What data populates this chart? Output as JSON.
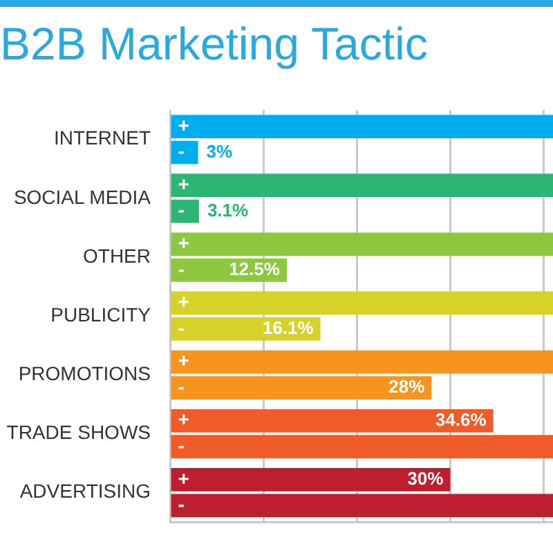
{
  "chart_data": {
    "type": "bar",
    "orientation": "horizontal",
    "title": "B2B Marketing Tactic",
    "categories": [
      "INTERNET",
      "SOCIAL MEDIA",
      "OTHER",
      "PUBLICITY",
      "PROMOTIONS",
      "TRADE SHOWS",
      "ADVERTISING"
    ],
    "series": [
      {
        "name": "+",
        "colors": [
          "#00aeef",
          "#2bb673",
          "#8dc63f",
          "#d7d22a",
          "#f7941d",
          "#f15a29",
          "#be1e2d"
        ],
        "values": [
          41,
          41,
          41,
          41,
          41,
          34.6,
          30
        ],
        "value_labels": [
          null,
          null,
          null,
          null,
          null,
          "34.6%",
          "30%"
        ]
      },
      {
        "name": "-",
        "colors": [
          "#00aeef",
          "#2bb673",
          "#8dc63f",
          "#d7d22a",
          "#f7941d",
          "#f15a29",
          "#be1e2d"
        ],
        "values": [
          3,
          3.1,
          12.5,
          16.1,
          28,
          41,
          41
        ],
        "value_labels": [
          "3%",
          "3.1%",
          "12.5%",
          "16.1%",
          "28%",
          null,
          null
        ]
      }
    ],
    "xlim": [
      0,
      41
    ],
    "xticks": [
      {
        "value": 0,
        "label": null
      },
      {
        "value": 10,
        "label": null
      },
      {
        "value": 20,
        "label": null
      },
      {
        "value": 30,
        "label": null
      },
      {
        "value": 40,
        "label": null
      }
    ],
    "grid": "x",
    "tick_labels": "y",
    "legend": false
  }
}
